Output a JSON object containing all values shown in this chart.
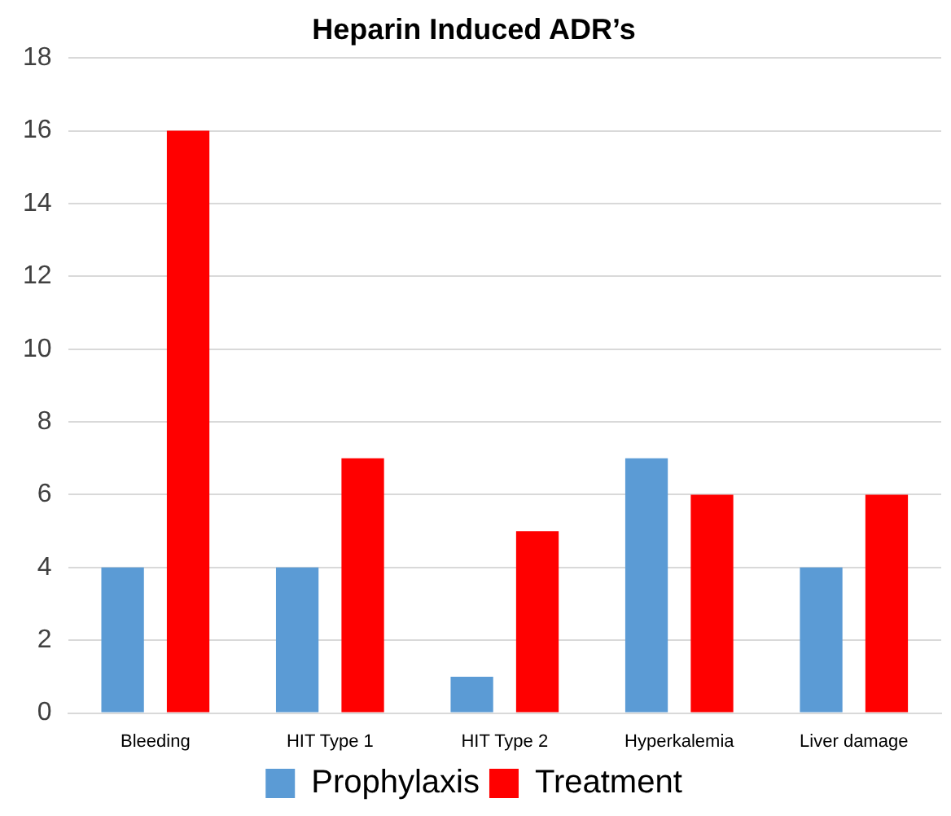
{
  "chart_data": {
    "type": "bar",
    "title": "Heparin Induced ADR’s",
    "categories": [
      "Bleeding",
      "HIT Type 1",
      "HIT Type 2",
      "Hyperkalemia",
      "Liver damage"
    ],
    "series": [
      {
        "name": "Prophylaxis",
        "color": "#5b9bd5",
        "values": [
          4,
          4,
          1,
          7,
          4
        ]
      },
      {
        "name": "Treatment",
        "color": "#ff0000",
        "values": [
          16,
          7,
          5,
          6,
          6
        ]
      }
    ],
    "ylim": [
      0,
      18
    ],
    "yticks": [
      0,
      2,
      4,
      6,
      8,
      10,
      12,
      14,
      16,
      18
    ],
    "grid": "y",
    "legend": "bottom"
  }
}
